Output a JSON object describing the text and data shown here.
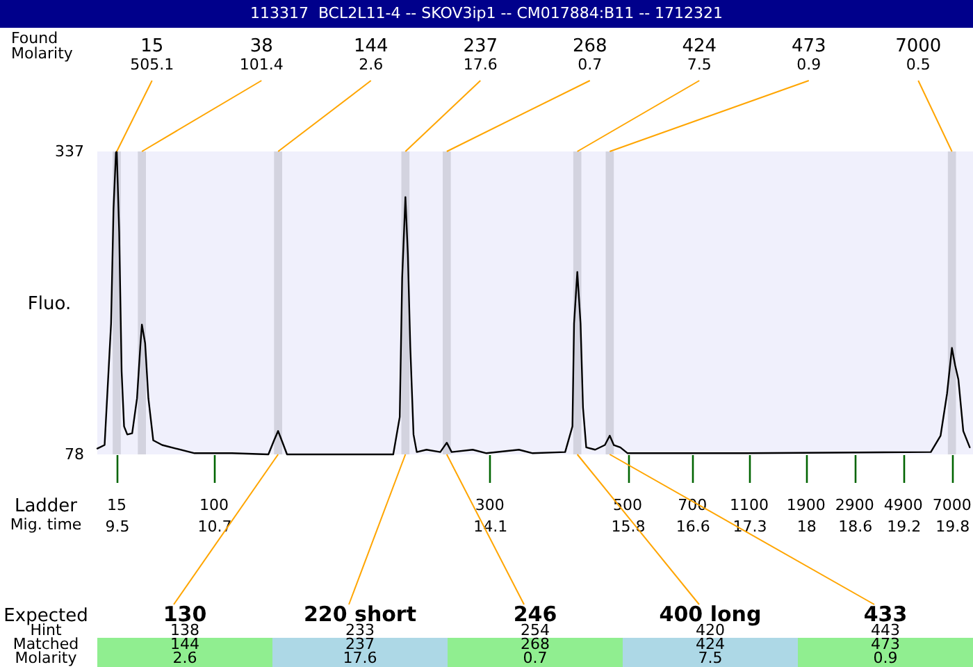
{
  "chart_data": {
    "type": "line",
    "title": "113317  BCL2L11-4 -- SKOV3ip1 -- CM017884:B11 -- 1712321",
    "ylabel": "Fluo.",
    "x": [
      9.26,
      9.35,
      9.43,
      9.46,
      9.49,
      9.5,
      9.53,
      9.56,
      9.59,
      9.63,
      9.69,
      9.75,
      9.79,
      9.81,
      9.85,
      9.89,
      9.95,
      10.06,
      10.23,
      10.46,
      10.92,
      11.37,
      11.44,
      11.49,
      11.54,
      11.6,
      12.91,
      12.99,
      13.02,
      13.06,
      13.09,
      13.12,
      13.16,
      13.2,
      13.32,
      13.49,
      13.57,
      13.63,
      13.89,
      14.06,
      14.46,
      14.63,
      15.03,
      15.12,
      15.14,
      15.18,
      15.22,
      15.25,
      15.29,
      15.4,
      15.52,
      15.58,
      15.63,
      15.71,
      15.8,
      17.26,
      19.54,
      19.66,
      19.74,
      19.8,
      19.84,
      19.88,
      19.94,
      20.02
    ],
    "values": [
      83,
      86,
      190,
      288,
      336,
      337,
      268,
      149,
      102,
      95,
      96,
      126,
      170,
      189,
      173,
      126,
      90,
      86,
      83,
      79,
      79,
      78,
      90,
      98,
      89,
      78,
      78,
      110,
      229,
      298,
      249,
      170,
      95,
      80,
      82,
      80,
      88,
      80,
      82,
      79,
      82,
      79,
      80,
      102,
      190,
      234,
      190,
      118,
      84,
      82,
      86,
      94,
      86,
      84,
      79,
      79,
      80,
      94,
      130,
      169,
      154,
      142,
      98,
      84
    ],
    "color": "#000000",
    "xlim": [
      9.26,
      20.06
    ],
    "ylim": [
      78,
      337
    ],
    "yticks": [
      78,
      337
    ],
    "xticks": [
      9.5,
      10.7,
      14.1,
      15.8,
      16.6,
      17.3,
      18,
      18.6,
      19.2,
      19.8
    ],
    "bands": [
      {
        "axis": "x",
        "from": 9.45,
        "to": 9.55,
        "color": "#d3d3df"
      },
      {
        "axis": "x",
        "from": 9.76,
        "to": 9.86,
        "color": "#d3d3df"
      },
      {
        "axis": "x",
        "from": 11.44,
        "to": 11.54,
        "color": "#d3d3df"
      },
      {
        "axis": "x",
        "from": 13.01,
        "to": 13.11,
        "color": "#d3d3df"
      },
      {
        "axis": "x",
        "from": 13.52,
        "to": 13.62,
        "color": "#d3d3df"
      },
      {
        "axis": "x",
        "from": 15.13,
        "to": 15.23,
        "color": "#d3d3df"
      },
      {
        "axis": "x",
        "from": 15.53,
        "to": 15.63,
        "color": "#d3d3df"
      },
      {
        "axis": "x",
        "from": 19.75,
        "to": 19.85,
        "color": "#d3d3df"
      }
    ],
    "annotations": [
      "Found",
      "Molarity",
      "15",
      "505.1",
      "38",
      "101.4",
      "144",
      "2.6",
      "237",
      "17.6",
      "268",
      "0.7",
      "424",
      "7.5",
      "473",
      "0.9",
      "7000",
      "0.5",
      "Ladder",
      "15",
      "100",
      "300",
      "500",
      "700",
      "1100",
      "1900",
      "2900",
      "4900",
      "7000",
      "Mig. time",
      "Expected",
      "Hint",
      "Matched",
      "Molarity",
      "130",
      "138",
      "144",
      "2.6",
      "220 short",
      "233",
      "237",
      "17.6",
      "246",
      "254",
      "268",
      "0.7",
      "400 long",
      "420",
      "424",
      "7.5",
      "433",
      "443",
      "473",
      "0.9"
    ]
  }
}
